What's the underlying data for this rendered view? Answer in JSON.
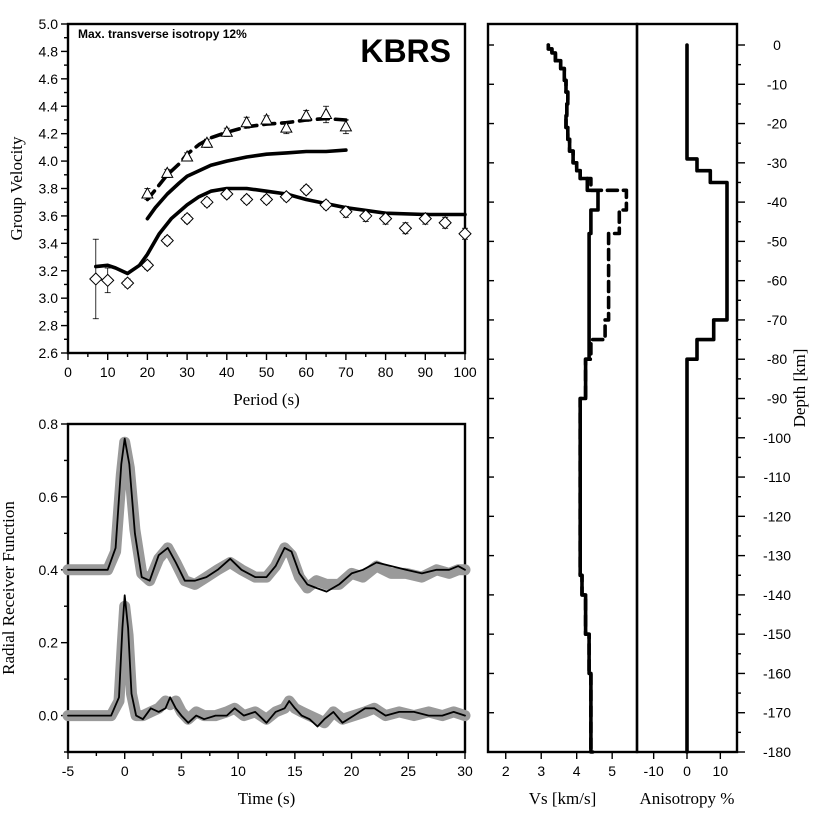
{
  "chart_data": [
    {
      "id": "dispersion",
      "type": "line",
      "title": "KBRS",
      "annotation": "Max. transverse isotropy 12%",
      "xlabel": "Period (s)",
      "ylabel": "Group Velocity",
      "xlim": [
        0,
        100
      ],
      "ylim": [
        2.6,
        5.0
      ],
      "xticks": [
        0,
        10,
        20,
        30,
        40,
        50,
        60,
        70,
        80,
        90,
        100
      ],
      "yticks": [
        2.6,
        2.8,
        3.0,
        3.2,
        3.4,
        3.6,
        3.8,
        4.0,
        4.2,
        4.4,
        4.6,
        4.8,
        5.0
      ],
      "ytick_labels": [
        "2.6",
        "2.8",
        "3.0",
        "3.2",
        "3.4",
        "3.6",
        "3.8",
        "4.0",
        "4.2",
        "4.4",
        "4.6",
        "4.8",
        "5.0"
      ],
      "love_observed": {
        "period": [
          20,
          25,
          30,
          35,
          40,
          45,
          50,
          55,
          60,
          65,
          70
        ],
        "velocity": [
          3.76,
          3.91,
          4.03,
          4.13,
          4.21,
          4.28,
          4.3,
          4.24,
          4.33,
          4.34,
          4.25
        ],
        "error": [
          0.04,
          0.03,
          0.03,
          0.03,
          0.03,
          0.04,
          0.03,
          0.04,
          0.04,
          0.06,
          0.05
        ]
      },
      "rayleigh_observed": {
        "period": [
          7,
          10,
          15,
          20,
          25,
          30,
          35,
          40,
          45,
          50,
          55,
          60,
          65,
          70,
          75,
          80,
          85,
          90,
          95,
          100
        ],
        "velocity": [
          3.14,
          3.13,
          3.11,
          3.24,
          3.42,
          3.58,
          3.7,
          3.76,
          3.72,
          3.72,
          3.74,
          3.79,
          3.68,
          3.63,
          3.6,
          3.58,
          3.51,
          3.58,
          3.55,
          3.47
        ],
        "error": [
          0.29,
          0.09,
          0.03,
          0.03,
          0.03,
          0.03,
          0.03,
          0.03,
          0.03,
          0.03,
          0.03,
          0.03,
          0.03,
          0.04,
          0.04,
          0.04,
          0.04,
          0.04,
          0.04,
          0.04
        ]
      },
      "love_predicted": {
        "x": [
          20,
          22,
          25,
          28,
          30,
          33,
          36,
          40,
          45,
          50,
          55,
          60,
          65,
          70
        ],
        "y": [
          3.72,
          3.79,
          3.9,
          3.98,
          4.05,
          4.12,
          4.17,
          4.21,
          4.25,
          4.27,
          4.28,
          4.3,
          4.31,
          4.3
        ]
      },
      "sv_predicted": {
        "x": [
          20,
          22,
          25,
          28,
          30,
          33,
          36,
          40,
          45,
          50,
          55,
          60,
          65,
          70
        ],
        "y": [
          3.58,
          3.66,
          3.76,
          3.84,
          3.89,
          3.93,
          3.97,
          4.0,
          4.03,
          4.05,
          4.06,
          4.07,
          4.07,
          4.08
        ]
      },
      "rayleigh_predicted": {
        "x": [
          7,
          10,
          12,
          15,
          18,
          20,
          23,
          26,
          30,
          33,
          36,
          40,
          45,
          50,
          55,
          60,
          65,
          70,
          75,
          80,
          90,
          100
        ],
        "y": [
          3.23,
          3.24,
          3.22,
          3.18,
          3.24,
          3.32,
          3.47,
          3.58,
          3.68,
          3.74,
          3.78,
          3.8,
          3.8,
          3.78,
          3.76,
          3.72,
          3.69,
          3.66,
          3.64,
          3.62,
          3.61,
          3.61
        ]
      }
    },
    {
      "id": "receiver_functions",
      "type": "line",
      "xlabel": "Time (s)",
      "ylabel": "Radial Receiver Function",
      "xlim": [
        -5,
        30
      ],
      "ylim": [
        -0.1,
        0.8
      ],
      "xticks": [
        -5,
        0,
        5,
        10,
        15,
        20,
        25,
        30
      ],
      "yticks": [
        0.0,
        0.2,
        0.4,
        0.6,
        0.8
      ],
      "ytick_labels": [
        "0.0",
        "0.2",
        "0.4",
        "0.6",
        "0.8"
      ],
      "upper_observed": {
        "x": [
          -5,
          -1.5,
          -0.8,
          -0.3,
          0,
          0.4,
          0.9,
          1.5,
          2.2,
          3,
          3.8,
          4.5,
          5.3,
          6.2,
          7.2,
          8.2,
          9.3,
          10.3,
          11.5,
          12.5,
          13.3,
          14.1,
          14.7,
          15.4,
          16.1,
          16.9,
          17.8,
          18.9,
          20,
          21,
          22.2,
          23.5,
          24.8,
          26.2,
          27.5,
          28.6,
          29.4,
          30
        ],
        "y": [
          0.4,
          0.4,
          0.45,
          0.66,
          0.75,
          0.68,
          0.51,
          0.39,
          0.37,
          0.43,
          0.46,
          0.42,
          0.37,
          0.36,
          0.38,
          0.4,
          0.42,
          0.4,
          0.38,
          0.38,
          0.41,
          0.46,
          0.44,
          0.38,
          0.35,
          0.37,
          0.36,
          0.36,
          0.39,
          0.38,
          0.41,
          0.39,
          0.39,
          0.38,
          0.4,
          0.39,
          0.4,
          0.4
        ]
      },
      "upper_predicted": {
        "x": [
          -5,
          -1.5,
          -0.8,
          -0.3,
          0,
          0.4,
          0.9,
          1.5,
          2.2,
          3,
          3.8,
          4.5,
          5.3,
          6.2,
          7.2,
          8.2,
          9.3,
          10.3,
          11.5,
          12.5,
          13.3,
          14.1,
          14.7,
          15.4,
          16.1,
          16.9,
          17.8,
          18.9,
          20,
          21,
          22.2,
          23.5,
          24.8,
          26.2,
          27.5,
          28.6,
          29.4,
          30
        ],
        "y": [
          0.4,
          0.4,
          0.46,
          0.69,
          0.76,
          0.69,
          0.5,
          0.38,
          0.37,
          0.44,
          0.46,
          0.42,
          0.37,
          0.37,
          0.38,
          0.4,
          0.43,
          0.4,
          0.38,
          0.38,
          0.41,
          0.46,
          0.45,
          0.39,
          0.36,
          0.35,
          0.34,
          0.36,
          0.39,
          0.4,
          0.42,
          0.41,
          0.4,
          0.39,
          0.4,
          0.4,
          0.41,
          0.4
        ]
      },
      "lower_observed": {
        "x": [
          -5,
          -1.2,
          -0.5,
          -0.2,
          0,
          0.3,
          0.6,
          1.0,
          1.6,
          2.3,
          3.0,
          3.6,
          4.0,
          4.5,
          5.0,
          5.6,
          6.3,
          7.0,
          8.0,
          9.0,
          9.7,
          10.5,
          11.5,
          12.5,
          13.3,
          14.1,
          14.5,
          15.0,
          15.6,
          16.3,
          17.0,
          17.6,
          18.4,
          19.2,
          20.2,
          21.2,
          22.0,
          23.0,
          24.2,
          25.5,
          26.8,
          28.0,
          29.0,
          30
        ],
        "y": [
          0.0,
          0.0,
          0.04,
          0.2,
          0.3,
          0.22,
          0.06,
          0.0,
          0.0,
          0.01,
          0.02,
          0.04,
          0.03,
          0.04,
          0.01,
          -0.01,
          0.01,
          0.0,
          0.0,
          0.01,
          0.02,
          0.0,
          0.01,
          -0.01,
          0.01,
          0.02,
          0.04,
          0.02,
          0.01,
          0.0,
          -0.01,
          -0.02,
          0.01,
          -0.01,
          0.0,
          0.01,
          0.02,
          0.0,
          0.01,
          0.0,
          0.01,
          0.0,
          0.01,
          0.0
        ]
      },
      "lower_predicted": {
        "x": [
          -5,
          -1.2,
          -0.5,
          -0.2,
          0,
          0.3,
          0.6,
          1.0,
          1.6,
          2.3,
          3.0,
          3.6,
          4.0,
          4.5,
          5.0,
          5.6,
          6.3,
          7.0,
          8.0,
          9.0,
          9.7,
          10.5,
          11.5,
          12.5,
          13.3,
          14.1,
          14.5,
          15.0,
          15.6,
          16.3,
          17.0,
          17.6,
          18.4,
          19.2,
          20.2,
          21.2,
          22.0,
          23.0,
          24.2,
          25.5,
          26.8,
          28.0,
          29.0,
          30
        ],
        "y": [
          0.0,
          0.0,
          0.05,
          0.24,
          0.33,
          0.24,
          0.06,
          0.0,
          -0.01,
          0.02,
          0.01,
          0.02,
          0.05,
          0.02,
          0.0,
          -0.02,
          0.0,
          -0.01,
          0.0,
          0.0,
          0.02,
          0.0,
          0.01,
          -0.02,
          0.01,
          0.02,
          0.04,
          0.02,
          0.0,
          -0.01,
          -0.03,
          -0.01,
          0.01,
          -0.02,
          0.0,
          0.02,
          0.02,
          0.0,
          0.01,
          0.01,
          0.0,
          0.0,
          0.01,
          0.0
        ]
      }
    },
    {
      "id": "vs_profile",
      "type": "line",
      "xlabel": "Vs [km/s]",
      "xlim": [
        1.5,
        5.7
      ],
      "ylim": [
        0,
        180
      ],
      "xticks": [
        2,
        3,
        4,
        5
      ],
      "vsh": {
        "depth": [
          0,
          1,
          2,
          4,
          6,
          9,
          12,
          15,
          18,
          21,
          24,
          27,
          30,
          32,
          34,
          37,
          42,
          48,
          55,
          62,
          70,
          75,
          80,
          90,
          100,
          120,
          135,
          140,
          150,
          160,
          170,
          180
        ],
        "vs": [
          3.2,
          3.3,
          3.4,
          3.55,
          3.65,
          3.7,
          3.75,
          3.72,
          3.7,
          3.75,
          3.8,
          3.9,
          4.0,
          4.1,
          4.4,
          5.4,
          5.2,
          4.9,
          4.9,
          4.9,
          4.8,
          4.4,
          4.25,
          4.1,
          4.1,
          4.1,
          4.15,
          4.25,
          4.35,
          4.4,
          4.4,
          4.45
        ]
      },
      "vsv": {
        "depth": [
          0,
          1,
          2,
          4,
          6,
          9,
          12,
          15,
          18,
          21,
          24,
          27,
          30,
          32,
          34,
          37,
          42,
          48,
          55,
          62,
          70,
          75,
          80,
          90,
          100,
          120,
          135,
          140,
          150,
          160,
          170,
          180
        ],
        "vs": [
          3.2,
          3.3,
          3.4,
          3.55,
          3.65,
          3.7,
          3.75,
          3.72,
          3.7,
          3.75,
          3.8,
          3.9,
          4.0,
          4.1,
          4.3,
          4.6,
          4.4,
          4.35,
          4.35,
          4.35,
          4.35,
          4.35,
          4.25,
          4.1,
          4.1,
          4.1,
          4.15,
          4.25,
          4.35,
          4.4,
          4.4,
          4.45
        ]
      }
    },
    {
      "id": "anisotropy",
      "type": "line",
      "xlabel": "Anisotropy %",
      "ylabel": "Depth [km]",
      "xlim": [
        -15,
        15
      ],
      "ylim": [
        0,
        180
      ],
      "xticks": [
        -10,
        0,
        10
      ],
      "yticks": [
        0,
        10,
        20,
        30,
        40,
        50,
        60,
        70,
        80,
        90,
        100,
        110,
        120,
        130,
        140,
        150,
        160,
        170,
        180
      ],
      "ytick_labels": [
        "0",
        "-10",
        "-20",
        "-30",
        "-40",
        "-50",
        "-60",
        "-70",
        "-80",
        "-90",
        "-100",
        "-110",
        "-120",
        "-130",
        "-140",
        "-150",
        "-160",
        "-170",
        "-180"
      ],
      "profile": {
        "depth": [
          0,
          29,
          32,
          35,
          70,
          75,
          80,
          180
        ],
        "aniso": [
          0,
          3,
          7,
          12,
          8,
          3,
          0,
          0
        ]
      }
    }
  ]
}
